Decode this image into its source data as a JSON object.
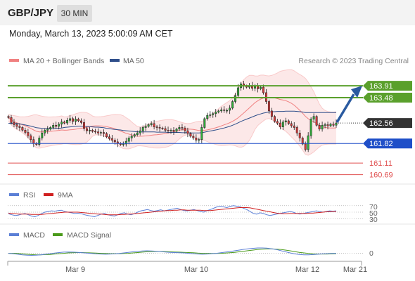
{
  "header": {
    "symbol": "GBP/JPY",
    "timeframe": "30 MIN"
  },
  "timestamp": "Monday, March 13, 2023 5:00:09 AM CET",
  "copyright": "Research © 2023 Trading Central",
  "colors": {
    "bollinger": "#f08080",
    "ma50": "#2e4e8a",
    "resistance": "#5aa02c",
    "support": "#1f4fc8",
    "minor_support": "#e05050",
    "current": "#333333",
    "arrow": "#2a5aa0",
    "rsi": "#5b7fd6",
    "rsi_ma": "#d02020",
    "macd": "#5b7fd6",
    "macd_signal": "#4a9a1a"
  },
  "chart_data": [
    {
      "type": "candlestick",
      "legend": [
        "MA 20 + Bollinger Bands",
        "MA 50"
      ],
      "x_ticks": [
        "Mar 9",
        "Mar 10",
        "Mar 12",
        "Mar 21"
      ],
      "ylim": [
        160.4,
        164.6
      ],
      "levels": [
        {
          "value": 163.91,
          "label": "163.91",
          "kind": "resistance"
        },
        {
          "value": 163.48,
          "label": "163.48",
          "kind": "resistance"
        },
        {
          "value": 162.56,
          "label": "162.56",
          "kind": "current"
        },
        {
          "value": 161.82,
          "label": "161.82",
          "kind": "support"
        },
        {
          "value": 161.11,
          "label": "161.11",
          "kind": "minor_support"
        },
        {
          "value": 160.69,
          "label": "160.69",
          "kind": "minor_support"
        }
      ],
      "close": [
        162.76,
        162.58,
        162.5,
        162.44,
        162.4,
        162.3,
        162.22,
        162.1,
        161.96,
        161.82,
        161.78,
        162.02,
        162.2,
        162.3,
        162.34,
        162.4,
        162.48,
        162.44,
        162.52,
        162.6,
        162.56,
        162.66,
        162.72,
        162.62,
        162.7,
        162.64,
        162.58,
        162.36,
        162.28,
        162.3,
        162.26,
        162.24,
        162.2,
        162.22,
        162.18,
        162.06,
        162.0,
        161.94,
        161.88,
        161.82,
        161.78,
        161.8,
        161.9,
        162.02,
        162.08,
        162.14,
        162.2,
        162.28,
        162.4,
        162.44,
        162.5,
        162.54,
        162.42,
        162.4,
        162.38,
        162.36,
        162.3,
        162.28,
        162.3,
        162.26,
        162.34,
        162.4,
        162.38,
        162.28,
        162.18,
        162.08,
        162.02,
        161.94,
        161.96,
        162.4,
        162.72,
        162.84,
        162.86,
        162.9,
        162.96,
        163.0,
        163.04,
        163.02,
        163.02,
        163.1,
        163.34,
        163.56,
        163.84,
        163.98,
        163.9,
        163.86,
        163.92,
        163.82,
        163.9,
        163.8,
        163.86,
        163.66,
        163.34,
        163.0,
        162.8,
        162.62,
        162.56,
        162.42,
        162.6,
        162.64,
        162.54,
        162.46,
        162.4,
        162.2,
        162.02,
        161.8,
        161.6,
        162.1,
        162.7,
        162.8,
        162.48,
        162.34,
        162.48,
        162.5,
        162.46,
        162.52,
        162.48,
        162.56
      ],
      "ma50": [
        162.55,
        162.55,
        162.55,
        162.54,
        162.53,
        162.51,
        162.49,
        162.47,
        162.45,
        162.42,
        162.39,
        162.38,
        162.37,
        162.36,
        162.36,
        162.36,
        162.36,
        162.37,
        162.37,
        162.38,
        162.4,
        162.41,
        162.42,
        162.43,
        162.44,
        162.45,
        162.45,
        162.44,
        162.44,
        162.43,
        162.42,
        162.41,
        162.41,
        162.4,
        162.39,
        162.37,
        162.36,
        162.34,
        162.33,
        162.32,
        162.31,
        162.29,
        162.28,
        162.27,
        162.26,
        162.25,
        162.24,
        162.24,
        162.24,
        162.24,
        162.24,
        162.24,
        162.24,
        162.23,
        162.23,
        162.23,
        162.23,
        162.22,
        162.22,
        162.22,
        162.22,
        162.22,
        162.21,
        162.21,
        162.21,
        162.2,
        162.2,
        162.2,
        162.2,
        162.21,
        162.23,
        162.25,
        162.27,
        162.29,
        162.31,
        162.33,
        162.36,
        162.38,
        162.41,
        162.44,
        162.48,
        162.52,
        162.57,
        162.62,
        162.66,
        162.7,
        162.74,
        162.78,
        162.82,
        162.86,
        162.89,
        162.92,
        162.94,
        162.96,
        162.97,
        162.97,
        162.98,
        162.98,
        162.98,
        162.99,
        162.99,
        162.99,
        162.99,
        162.98,
        162.97,
        162.96,
        162.94,
        162.94,
        162.94,
        162.94,
        162.94,
        162.94,
        162.94,
        162.94,
        162.94,
        162.94,
        162.94,
        162.94
      ]
    },
    {
      "type": "line",
      "legend": [
        "RSI",
        "9MA"
      ],
      "y_ticks": [
        "70",
        "50",
        "30"
      ],
      "ylim": [
        20,
        80
      ],
      "rsi": [
        45,
        42,
        40,
        41,
        44,
        46,
        42,
        38,
        36,
        40,
        46,
        50,
        52,
        54,
        53,
        55,
        56,
        52,
        50,
        48,
        46,
        47,
        45,
        42,
        40,
        38,
        36,
        40,
        44,
        46,
        42,
        40,
        38,
        42,
        46,
        48,
        44,
        42,
        45,
        50,
        54,
        56,
        58,
        55,
        53,
        55,
        57,
        54,
        56,
        58,
        60,
        62,
        58,
        55,
        54,
        56,
        58,
        55,
        52,
        50,
        55,
        58,
        62,
        66,
        68,
        66,
        64,
        68,
        70,
        68,
        66,
        62,
        58,
        52,
        46,
        44,
        48,
        46,
        42,
        40,
        42,
        44,
        46,
        48,
        50,
        52,
        50,
        46,
        44,
        46,
        48,
        50,
        52,
        54,
        52,
        50,
        52,
        54,
        53,
        54
      ],
      "ma9": [
        47,
        46,
        45,
        44,
        44,
        44,
        44,
        43,
        43,
        43,
        43,
        44,
        45,
        46,
        47,
        48,
        49,
        50,
        50,
        50,
        50,
        50,
        49,
        48,
        47,
        46,
        45,
        44,
        44,
        43,
        42,
        42,
        42,
        42,
        43,
        43,
        44,
        44,
        45,
        46,
        47,
        48,
        49,
        50,
        51,
        52,
        53,
        54,
        55,
        55,
        56,
        56,
        57,
        57,
        56,
        56,
        56,
        56,
        56,
        55,
        55,
        55,
        56,
        57,
        58,
        59,
        60,
        61,
        62,
        63,
        64,
        64,
        64,
        63,
        61,
        59,
        57,
        55,
        53,
        51,
        49,
        47,
        46,
        45,
        45,
        46,
        46,
        46,
        46,
        46,
        46,
        47,
        47,
        48,
        49,
        50,
        51,
        51,
        52,
        52
      ]
    },
    {
      "type": "line",
      "legend": [
        "MACD",
        "MACD Signal"
      ],
      "y_ticks": [
        "0"
      ],
      "ylim": [
        -0.35,
        0.65
      ],
      "macd": [
        0.0,
        -0.02,
        -0.05,
        -0.08,
        -0.1,
        -0.11,
        -0.1,
        -0.08,
        -0.05,
        -0.02,
        0.01,
        0.04,
        0.06,
        0.07,
        0.06,
        0.05,
        0.03,
        0.01,
        -0.01,
        -0.03,
        -0.04,
        -0.05,
        -0.04,
        -0.03,
        -0.01,
        0.02,
        0.05,
        0.08,
        0.1,
        0.12,
        0.13,
        0.12,
        0.11,
        0.09,
        0.07,
        0.05,
        0.04,
        0.03,
        0.02,
        0.0,
        -0.02,
        -0.04,
        -0.05,
        -0.04,
        -0.02,
        0.0,
        0.03,
        0.06,
        0.09,
        0.13,
        0.17,
        0.21,
        0.24,
        0.26,
        0.28,
        0.28,
        0.27,
        0.24,
        0.2,
        0.14,
        0.08,
        0.02,
        -0.03,
        -0.06,
        -0.08,
        -0.08,
        -0.07,
        -0.05,
        -0.03,
        -0.02,
        -0.01,
        0.0
      ],
      "signal": [
        0.0,
        0.0,
        -0.01,
        -0.03,
        -0.05,
        -0.07,
        -0.08,
        -0.08,
        -0.07,
        -0.06,
        -0.04,
        -0.02,
        0.0,
        0.02,
        0.03,
        0.04,
        0.04,
        0.03,
        0.02,
        0.01,
        0.0,
        -0.01,
        -0.02,
        -0.02,
        -0.02,
        -0.01,
        0.0,
        0.02,
        0.04,
        0.06,
        0.08,
        0.09,
        0.1,
        0.1,
        0.09,
        0.08,
        0.07,
        0.06,
        0.05,
        0.04,
        0.03,
        0.01,
        0.0,
        -0.01,
        -0.01,
        -0.01,
        0.0,
        0.01,
        0.03,
        0.05,
        0.08,
        0.11,
        0.14,
        0.17,
        0.2,
        0.22,
        0.23,
        0.23,
        0.22,
        0.2,
        0.17,
        0.13,
        0.09,
        0.05,
        0.02,
        -0.01,
        -0.03,
        -0.04,
        -0.04,
        -0.04,
        -0.03,
        -0.02
      ]
    }
  ]
}
